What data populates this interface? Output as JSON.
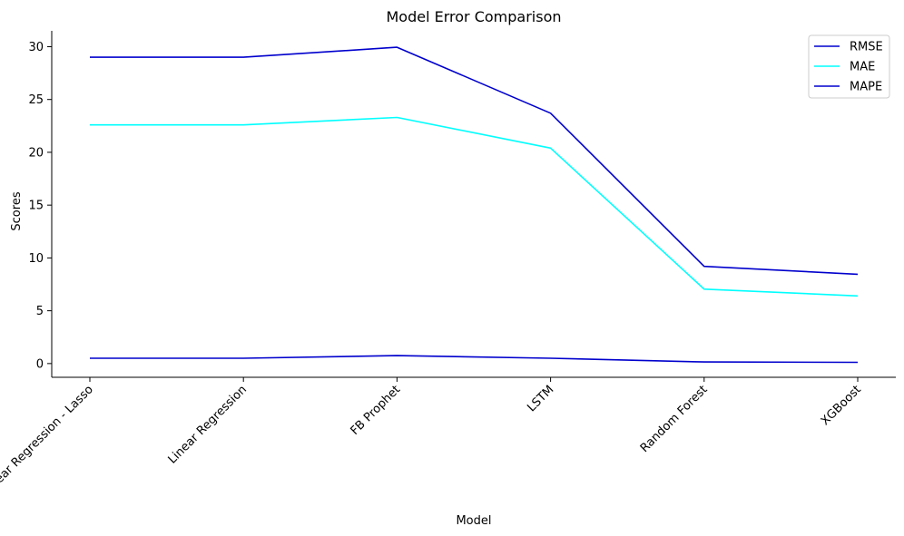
{
  "chart_data": {
    "type": "line",
    "title": "Model Error Comparison",
    "xlabel": "Model",
    "ylabel": "Scores",
    "categories": [
      "Linear Regression - Lasso",
      "Linear Regression",
      "FB Prophet",
      "LSTM",
      "Random Forest",
      "XGBoost"
    ],
    "series": [
      {
        "name": "RMSE",
        "color": "#0000cd",
        "values": [
          29.0,
          29.0,
          29.95,
          23.7,
          9.2,
          8.45
        ]
      },
      {
        "name": "MAE",
        "color": "#00ffff",
        "values": [
          22.6,
          22.6,
          23.3,
          20.4,
          7.05,
          6.4
        ]
      },
      {
        "name": "MAPE",
        "color": "#0000cd",
        "values": [
          0.5,
          0.5,
          0.75,
          0.5,
          0.15,
          0.12
        ]
      }
    ],
    "yticks": [
      0,
      5,
      10,
      15,
      20,
      25,
      30
    ],
    "ylim": [
      -1.3,
      31.5
    ],
    "grid": false,
    "legend_position": "top-right"
  }
}
